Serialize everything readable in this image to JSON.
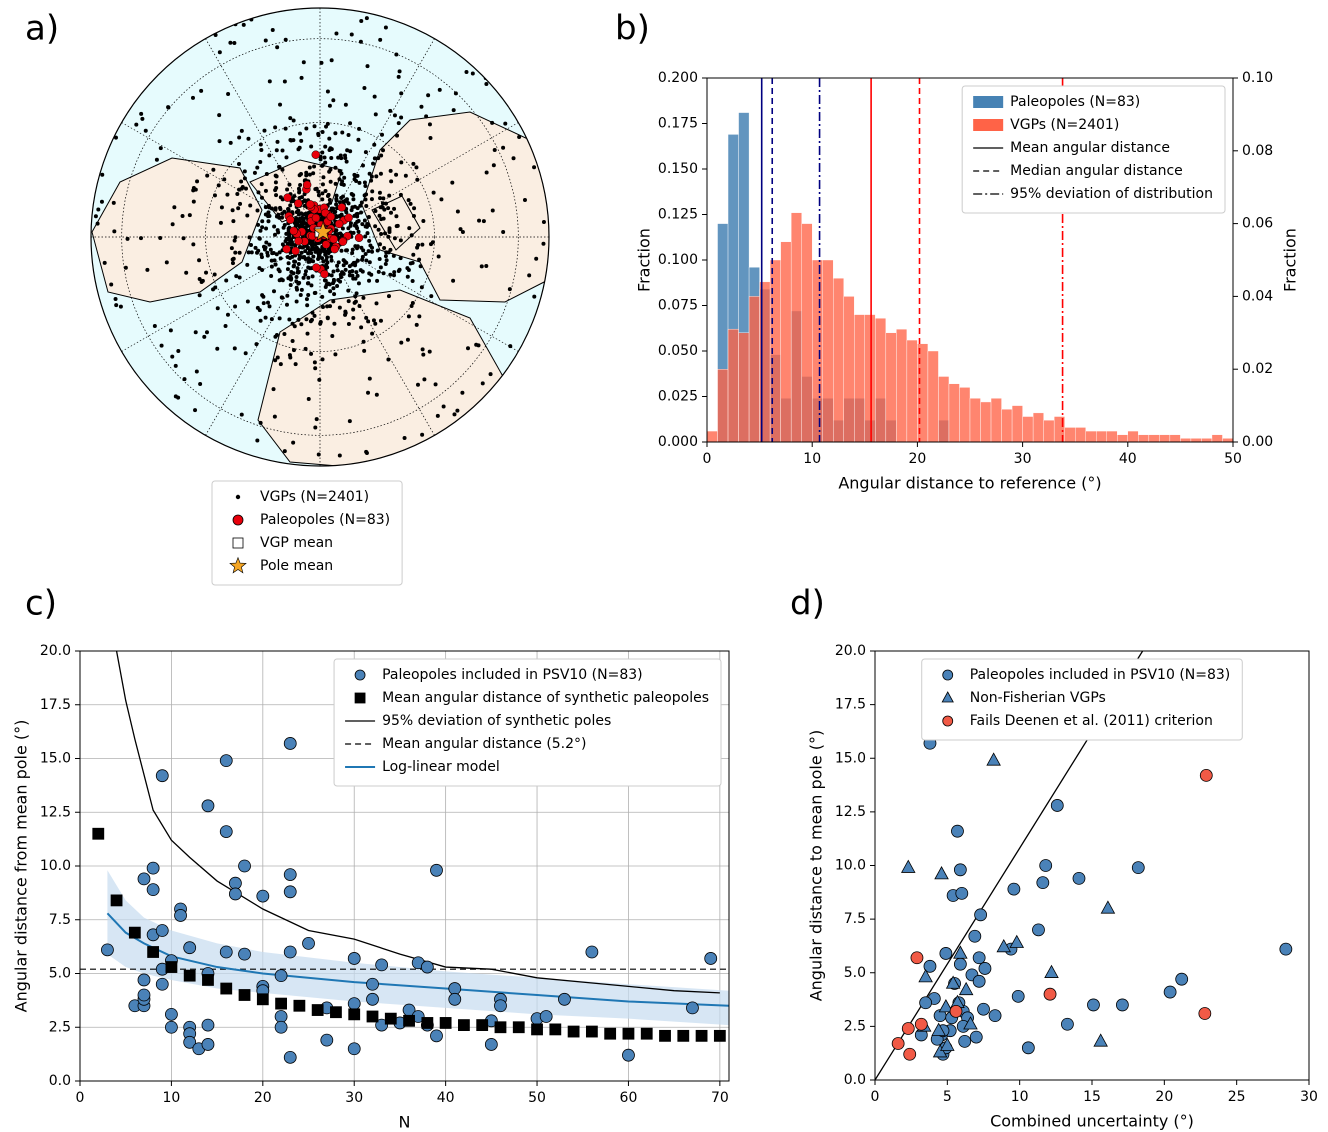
{
  "chart_data": [
    {
      "type": "map",
      "panel_label": "a)",
      "ocean_color": "#e6fbfd",
      "land_color": "#faeee2",
      "legend": "below",
      "series": [
        {
          "name": "VGPs (N=2401)",
          "marker": "dot",
          "color": "#000000"
        },
        {
          "name": "Paleopoles (N=83)",
          "marker": "circle",
          "color": "#e8000b"
        },
        {
          "name": "VGP mean",
          "marker": "square",
          "color": "#ffffff"
        },
        {
          "name": "Pole mean",
          "marker": "star",
          "color": "#f5a623"
        }
      ]
    },
    {
      "type": "histogram",
      "panel_label": "b)",
      "xlabel": "Angular distance to reference (°)",
      "ylabel": "Fraction",
      "y2label": "Fraction",
      "xlim": [
        0,
        50
      ],
      "xticks": [
        0,
        10,
        20,
        30,
        40,
        50
      ],
      "ylim": [
        0,
        0.2
      ],
      "yticks": [
        {
          "value": 0,
          "label": "0.000"
        },
        0.025,
        {
          "value": 0.05,
          "label": "0.050"
        },
        0.075,
        {
          "value": 0.1,
          "label": "0.100"
        },
        0.125,
        {
          "value": 0.15,
          "label": "0.150"
        },
        0.175,
        {
          "value": 0.2,
          "label": "0.200"
        }
      ],
      "y2lim": [
        0,
        0.1
      ],
      "y2ticks": [
        {
          "value": 0,
          "label": "0.00"
        },
        0.02,
        0.04,
        0.06,
        0.08,
        {
          "value": 0.1,
          "label": "0.10"
        }
      ],
      "grid": false,
      "legend": "upper right",
      "bins": [
        0,
        1,
        2,
        3,
        4,
        5,
        6,
        7,
        8,
        9,
        10,
        11,
        12,
        13,
        14,
        15,
        16,
        17,
        18,
        19,
        20,
        21,
        22,
        23,
        24,
        25,
        26,
        27,
        28,
        29,
        30,
        31,
        32,
        33,
        34,
        35,
        36,
        37,
        38,
        39,
        40,
        41,
        42,
        43,
        44,
        45,
        46,
        47,
        48,
        49,
        50
      ],
      "series": [
        {
          "name": "Paleopoles (N=83)",
          "color": "#4682b4",
          "line_color": "#000080",
          "values": [
            0,
            0.12,
            0.169,
            0.181,
            0.096,
            0.084,
            0.048,
            0.024,
            0.072,
            0.036,
            0.024,
            0.024,
            0.012,
            0.024,
            0.024,
            0.012,
            0.024,
            0.012,
            0,
            0,
            0,
            0,
            0.012,
            0,
            0,
            0,
            0,
            0,
            0,
            0,
            0,
            0,
            0,
            0,
            0,
            0,
            0,
            0,
            0,
            0,
            0,
            0,
            0,
            0,
            0,
            0,
            0,
            0,
            0,
            0
          ]
        },
        {
          "name": "VGPs (N=2401)",
          "color": "#ff6347",
          "line_color": "#ff0000",
          "axis": "y2",
          "values": [
            0.003,
            0.02,
            0.031,
            0.03,
            0.04,
            0.044,
            0.05,
            0.055,
            0.063,
            0.06,
            0.05,
            0.05,
            0.045,
            0.04,
            0.035,
            0.035,
            0.034,
            0.03,
            0.031,
            0.028,
            0.027,
            0.025,
            0.018,
            0.016,
            0.015,
            0.012,
            0.011,
            0.012,
            0.009,
            0.01,
            0.007,
            0.008,
            0.006,
            0.007,
            0.004,
            0.004,
            0.003,
            0.003,
            0.003,
            0.002,
            0.003,
            0.002,
            0.002,
            0.002,
            0.002,
            0.001,
            0.001,
            0.001,
            0.002,
            0.001
          ]
        }
      ],
      "reference_lines": [
        {
          "name": "Mean angular distance",
          "style": "solid",
          "values": [
            5.2,
            15.6
          ]
        },
        {
          "name": "Median angular distance",
          "style": "dashed",
          "values": [
            6.2,
            20.2
          ]
        },
        {
          "name": "95% deviation of distribution",
          "style": "dashdot",
          "values": [
            10.7,
            33.8
          ]
        }
      ]
    },
    {
      "type": "scatter",
      "panel_label": "c)",
      "xlabel": "N",
      "ylabel": "Angular distance from mean pole (°)",
      "xlim": [
        0,
        71
      ],
      "xticks": [
        0,
        10,
        20,
        30,
        40,
        50,
        60,
        70
      ],
      "ylim": [
        0,
        20
      ],
      "yticks": [
        {
          "value": 0,
          "label": "0.0"
        },
        2.5,
        {
          "value": 5,
          "label": "5.0"
        },
        7.5,
        {
          "value": 10,
          "label": "10.0"
        },
        12.5,
        {
          "value": 15,
          "label": "15.0"
        },
        17.5,
        {
          "value": 20,
          "label": "20.0"
        }
      ],
      "grid": true,
      "legend": "upper right",
      "series": [
        {
          "name": "Paleopoles included in PSV10 (N=83)",
          "marker": "circle",
          "color": "#4a82b8",
          "x": [
            3,
            6,
            7,
            7,
            7,
            7,
            7,
            8,
            8,
            8,
            9,
            9,
            9,
            9,
            10,
            10,
            10,
            11,
            11,
            12,
            12,
            12,
            12,
            13,
            14,
            14,
            14,
            14,
            16,
            16,
            16,
            17,
            17,
            18,
            18,
            20,
            20,
            20,
            22,
            22,
            22,
            23,
            23,
            23,
            23,
            23,
            25,
            27,
            27,
            30,
            30,
            30,
            32,
            32,
            33,
            33,
            35,
            36,
            37,
            37,
            38,
            38,
            39,
            39,
            41,
            41,
            45,
            45,
            46,
            46,
            50,
            51,
            53,
            56,
            60,
            67,
            69
          ],
          "y": [
            6.1,
            3.5,
            3.5,
            3.8,
            4,
            4.7,
            9.4,
            8.9,
            9.9,
            6.8,
            14.2,
            7,
            5.2,
            4.5,
            5.6,
            3.1,
            2.5,
            8,
            7.7,
            6.2,
            2.5,
            2.2,
            1.8,
            1.5,
            1.7,
            2.6,
            5,
            12.8,
            14.9,
            11.6,
            6,
            9.2,
            8.7,
            10,
            5.9,
            8.6,
            4.4,
            4.2,
            4.9,
            3,
            2.5,
            15.7,
            9.6,
            8.8,
            6,
            1.1,
            6.4,
            3.4,
            1.9,
            5.7,
            3.6,
            1.5,
            4.5,
            3.8,
            5.4,
            2.6,
            2.7,
            3.3,
            5.5,
            3,
            5.3,
            2.6,
            9.8,
            2.1,
            4.3,
            3.8,
            2.8,
            1.7,
            3.8,
            3.5,
            2.9,
            3,
            3.8,
            6,
            1.2,
            3.4,
            5.7
          ]
        },
        {
          "name": "Mean angular distance of synthetic paleopoles",
          "marker": "square",
          "color": "#000000",
          "x": [
            2,
            4,
            6,
            8,
            10,
            12,
            14,
            16,
            18,
            20,
            22,
            24,
            26,
            28,
            30,
            32,
            34,
            36,
            38,
            40,
            42,
            44,
            46,
            48,
            50,
            52,
            54,
            56,
            58,
            60,
            62,
            64,
            66,
            68,
            70
          ],
          "y": [
            11.5,
            8.4,
            6.9,
            6,
            5.3,
            4.9,
            4.7,
            4.3,
            4,
            3.8,
            3.6,
            3.5,
            3.3,
            3.2,
            3.1,
            3,
            2.9,
            2.8,
            2.7,
            2.7,
            2.6,
            2.6,
            2.5,
            2.5,
            2.4,
            2.4,
            2.3,
            2.3,
            2.2,
            2.2,
            2.2,
            2.1,
            2.1,
            2.1,
            2.1
          ]
        },
        {
          "name": "95% deviation of synthetic poles",
          "kind": "line",
          "style": "solid",
          "color": "#000000",
          "x": [
            4,
            5,
            6,
            8,
            10,
            12,
            15,
            20,
            25,
            30,
            35,
            40,
            45,
            50,
            55,
            60,
            65,
            70
          ],
          "y": [
            20,
            17.7,
            15.9,
            12.6,
            11.2,
            10.4,
            9.3,
            8,
            7,
            6.6,
            5.9,
            5.3,
            5.2,
            4.8,
            4.6,
            4.4,
            4.2,
            4.1
          ]
        },
        {
          "name": "Mean angular distance (5.2°)",
          "kind": "hline",
          "style": "dashed",
          "color": "#000000",
          "value": 5.2
        },
        {
          "name": "Log-linear model",
          "kind": "line",
          "style": "solid",
          "color": "#1f77b4",
          "band_color": "#c6dbef",
          "x": [
            3,
            5,
            7,
            10,
            15,
            20,
            30,
            40,
            50,
            60,
            71
          ],
          "y": [
            7.8,
            6.9,
            6.4,
            5.8,
            5.3,
            5,
            4.6,
            4.3,
            4,
            3.7,
            3.5
          ],
          "lower": [
            5.9,
            5.3,
            5,
            4.7,
            4.3,
            4.1,
            3.7,
            3.4,
            3.1,
            2.9,
            2.6
          ],
          "upper": [
            9.8,
            8.4,
            7.6,
            7,
            6.4,
            6,
            5.5,
            5.1,
            4.8,
            4.5,
            4.2
          ]
        }
      ]
    },
    {
      "type": "scatter",
      "panel_label": "d)",
      "xlabel": "Combined uncertainty (°)",
      "ylabel": "Angular distance to mean pole (°)",
      "xlim": [
        0,
        30
      ],
      "xticks": [
        0,
        5,
        10,
        15,
        20,
        25,
        30
      ],
      "ylim": [
        0,
        20
      ],
      "yticks": [
        {
          "value": 0,
          "label": "0.0"
        },
        2.5,
        {
          "value": 5,
          "label": "5.0"
        },
        7.5,
        {
          "value": 10,
          "label": "10.0"
        },
        12.5,
        {
          "value": 15,
          "label": "15.0"
        },
        17.5,
        {
          "value": 20,
          "label": "20.0"
        }
      ],
      "grid": false,
      "legend": "upper center",
      "series": [
        {
          "name": "Paleopoles included in PSV10 (N=83)",
          "marker": "circle",
          "color": "#4a82b8",
          "x": [
            3.8,
            12.6,
            5.7,
            5.9,
            11.8,
            18.2,
            14.1,
            11.6,
            9.6,
            5.4,
            6,
            7.3,
            11.3,
            6.9,
            28.4,
            9.4,
            7.2,
            4.9,
            3.8,
            5.9,
            6.7,
            7.6,
            21.2,
            20.4,
            7.2,
            5.5,
            9.9,
            4.1,
            3.5,
            5.8,
            6.1,
            7.5,
            15.1,
            17.1,
            4.5,
            5.3,
            6.4,
            8.3,
            13.3,
            3.2,
            4.6,
            6.1,
            5.2,
            4.3,
            6.2,
            4.7,
            4.9,
            7,
            10.6,
            4.7
          ],
          "y": [
            15.7,
            12.8,
            11.6,
            9.8,
            10,
            9.9,
            9.4,
            9.2,
            8.9,
            8.6,
            8.7,
            7.7,
            7,
            6.7,
            6.1,
            6.1,
            5.7,
            5.9,
            5.3,
            5.4,
            4.9,
            5.2,
            4.7,
            4.1,
            4.6,
            4.5,
            3.9,
            3.8,
            3.6,
            3.6,
            3.2,
            3.3,
            3.5,
            3.5,
            3,
            2.9,
            2.9,
            3,
            2.6,
            2.1,
            2.1,
            2.5,
            2.3,
            1.9,
            1.8,
            1.2,
            1.5,
            2,
            1.5,
            2.3
          ]
        },
        {
          "name": "Non-Fisherian VGPs",
          "marker": "triangle",
          "color": "#4a82b8",
          "x": [
            2.3,
            4.6,
            8.2,
            16.1,
            5.9,
            8.9,
            9.8,
            12.2,
            5.4,
            6.3,
            5.7,
            4.9,
            3.4,
            4.4,
            4.5,
            5,
            15.6,
            3.5,
            6.6
          ],
          "y": [
            9.9,
            9.6,
            14.9,
            8,
            5.9,
            6.2,
            6.4,
            5,
            4.5,
            4.2,
            3.6,
            3.4,
            2.5,
            2.3,
            1.3,
            1.6,
            1.8,
            4.8,
            2.6
          ]
        },
        {
          "name": "Fails Deenen et al. (2011) criterion",
          "marker": "circle",
          "color": "#f15a46",
          "x": [
            22.9,
            2.9,
            12.1,
            22.8,
            5.6,
            3.2,
            2.3,
            1.6,
            2.4
          ],
          "y": [
            14.2,
            5.7,
            4,
            3.1,
            3.2,
            2.6,
            2.4,
            1.7,
            1.2
          ]
        },
        {
          "kind": "line",
          "style": "solid",
          "color": "#000000",
          "x": [
            0,
            18.5
          ],
          "y": [
            0,
            20
          ]
        }
      ]
    }
  ]
}
